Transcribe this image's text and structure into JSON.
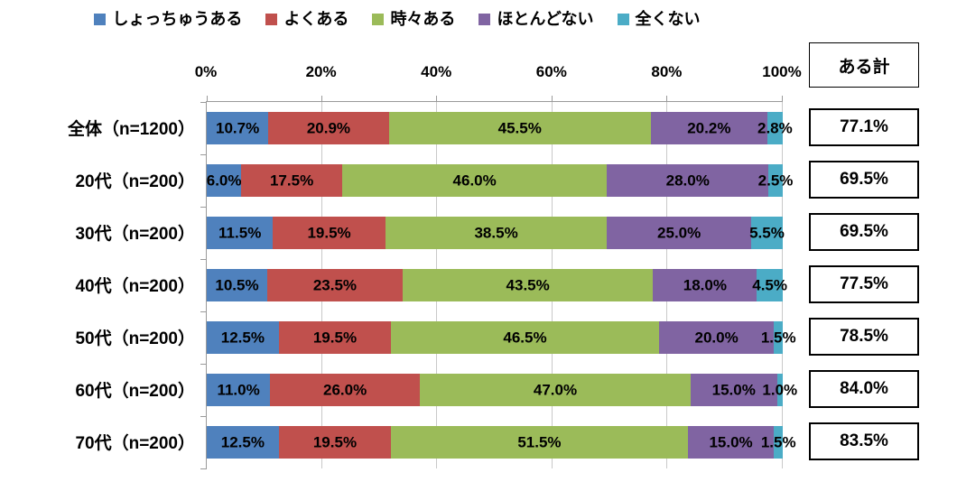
{
  "totals_header": "ある計",
  "legend": {
    "items": [
      {
        "label": "しょっちゅうある",
        "color": "#4F81BD"
      },
      {
        "label": "よくある",
        "color": "#C0504D"
      },
      {
        "label": "時々ある",
        "color": "#9BBB59"
      },
      {
        "label": "ほとんどない",
        "color": "#8064A2"
      },
      {
        "label": "全くない",
        "color": "#4BACC6"
      }
    ]
  },
  "chart_data": {
    "type": "bar",
    "stacked": true,
    "orientation": "horizontal",
    "title": "",
    "xlabel": "",
    "ylabel": "",
    "xlim": [
      0,
      100
    ],
    "grid": true,
    "legend_position": "top",
    "tick_labels": [
      "0%",
      "20%",
      "40%",
      "60%",
      "80%",
      "100%"
    ],
    "tick_values": [
      0,
      20,
      40,
      60,
      80,
      100
    ],
    "categories": [
      "全体（n=1200）",
      "20代（n=200）",
      "30代（n=200）",
      "40代（n=200）",
      "50代（n=200）",
      "60代（n=200）",
      "70代（n=200）"
    ],
    "series": [
      {
        "name": "しょっちゅうある",
        "color": "#4F81BD",
        "values": [
          10.7,
          6.0,
          11.5,
          10.5,
          12.5,
          11.0,
          12.5
        ]
      },
      {
        "name": "よくある",
        "color": "#C0504D",
        "values": [
          20.9,
          17.5,
          19.5,
          23.5,
          19.5,
          26.0,
          19.5
        ]
      },
      {
        "name": "時々ある",
        "color": "#9BBB59",
        "values": [
          45.5,
          46.0,
          38.5,
          43.5,
          46.5,
          47.0,
          51.5
        ]
      },
      {
        "name": "ほとんどない",
        "color": "#8064A2",
        "values": [
          20.2,
          28.0,
          25.0,
          18.0,
          20.0,
          15.0,
          15.0
        ]
      },
      {
        "name": "全くない",
        "color": "#4BACC6",
        "values": [
          2.8,
          2.5,
          5.5,
          4.5,
          1.5,
          1.0,
          1.5
        ]
      }
    ],
    "totals_column": {
      "header": "ある計",
      "values": [
        "77.1%",
        "69.5%",
        "69.5%",
        "77.5%",
        "78.5%",
        "84.0%",
        "83.5%"
      ]
    },
    "value_label_suffix": "%"
  }
}
